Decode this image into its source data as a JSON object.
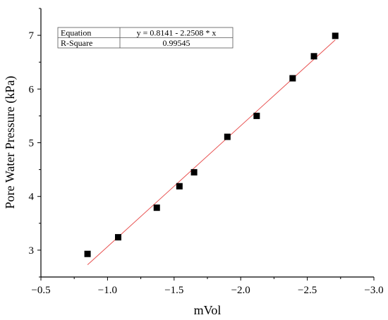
{
  "chart_data": {
    "type": "scatter",
    "xlabel": "mVol",
    "ylabel": "Pore Water Pressure (kPa)",
    "xlim": [
      -0.5,
      -3.0
    ],
    "ylim": [
      2.5,
      7.5
    ],
    "x_ticks": [
      -0.5,
      -1.0,
      -1.5,
      -2.0,
      -2.5,
      -3.0
    ],
    "x_tick_labels": [
      "−0.5",
      "−1.0",
      "−1.5",
      "−2.0",
      "−2.5",
      "−3.0"
    ],
    "y_ticks": [
      3,
      4,
      5,
      6,
      7
    ],
    "y_tick_labels": [
      "3",
      "4",
      "5",
      "6",
      "7"
    ],
    "grid": false,
    "points": [
      {
        "x": -0.85,
        "y": 2.93
      },
      {
        "x": -1.08,
        "y": 3.24
      },
      {
        "x": -1.37,
        "y": 3.79
      },
      {
        "x": -1.54,
        "y": 4.19
      },
      {
        "x": -1.65,
        "y": 4.45
      },
      {
        "x": -1.9,
        "y": 5.11
      },
      {
        "x": -2.12,
        "y": 5.5
      },
      {
        "x": -2.39,
        "y": 6.2
      },
      {
        "x": -2.55,
        "y": 6.61
      },
      {
        "x": -2.71,
        "y": 6.99
      }
    ],
    "fit": {
      "intercept": 0.8141,
      "slope": -2.2508,
      "x_range": [
        -0.85,
        -2.71
      ],
      "color": "#e8504f"
    },
    "marker_color": "#000000",
    "fit_table": {
      "rows": [
        {
          "label": "Equation",
          "value": "y = 0.8141 - 2.2508 * x"
        },
        {
          "label": "R-Square",
          "value": "0.99545"
        }
      ]
    }
  }
}
